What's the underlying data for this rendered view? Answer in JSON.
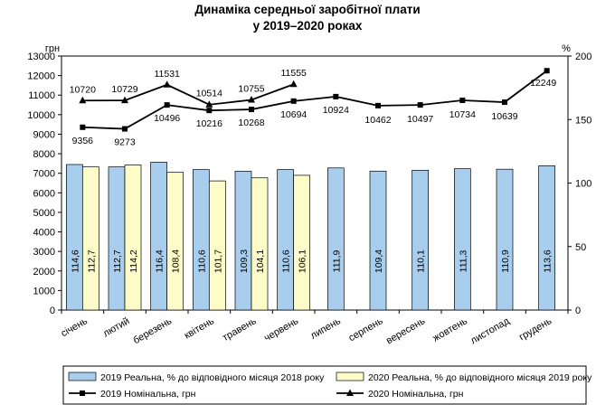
{
  "chart_data": {
    "type": "bar",
    "title": [
      "Динаміка середньої заробітної плати",
      "у 2019–2020 роках"
    ],
    "left_axis": {
      "unit": "грн",
      "ylim": [
        0,
        13000
      ],
      "ticks": [
        "0",
        "1000",
        "2000",
        "3000",
        "4000",
        "5000",
        "6000",
        "7000",
        "8000",
        "9000",
        "10000",
        "11000",
        "12000",
        "13000"
      ]
    },
    "right_axis": {
      "unit": "%",
      "ylim": [
        0,
        200
      ],
      "ticks": [
        "0",
        "50",
        "100",
        "150",
        "200"
      ]
    },
    "categories": [
      "січень",
      "лютий",
      "березень",
      "квітень",
      "травень",
      "червень",
      "липень",
      "серпень",
      "вересень",
      "жовтень",
      "листопад",
      "грудень"
    ],
    "bar_series": [
      {
        "name": "2019 Реальна, % до відповідного місяця 2018 року",
        "color": "#a9cdec",
        "values": [
          114.6,
          112.7,
          116.4,
          110.6,
          109.3,
          110.6,
          111.9,
          109.4,
          110.1,
          111.3,
          110.9,
          113.6
        ],
        "labels": [
          "114,6",
          "112,7",
          "116,4",
          "110,6",
          "109,3",
          "110,6",
          "111,9",
          "109,4",
          "110,1",
          "111,3",
          "110,9",
          "113,6"
        ]
      },
      {
        "name": "2020 Реальна, % до відповідного місяця 2019 року",
        "color": "#fdfbc8",
        "values": [
          112.7,
          114.2,
          108.4,
          101.7,
          104.1,
          106.1
        ],
        "labels": [
          "112,7",
          "114,2",
          "108,4",
          "101,7",
          "104,1",
          "106,1"
        ]
      }
    ],
    "line_series": [
      {
        "name": "2019 Номінальна, грн",
        "marker": "square",
        "values": [
          9356,
          9273,
          10496,
          10216,
          10268,
          10694,
          10924,
          10462,
          10497,
          10734,
          10639,
          12249
        ],
        "labels": [
          "9356",
          "9273",
          "10496",
          "10216",
          "10268",
          "10694",
          "10924",
          "10462",
          "10497",
          "10734",
          "10639",
          "12249"
        ]
      },
      {
        "name": "2020 Номінальна, грн",
        "marker": "triangle",
        "values": [
          10720,
          10729,
          11531,
          10514,
          10755,
          11555
        ],
        "labels": [
          "10720",
          "10729",
          "11531",
          "10514",
          "10755",
          "11555"
        ]
      }
    ],
    "grid": false,
    "legend_position": "bottom"
  }
}
